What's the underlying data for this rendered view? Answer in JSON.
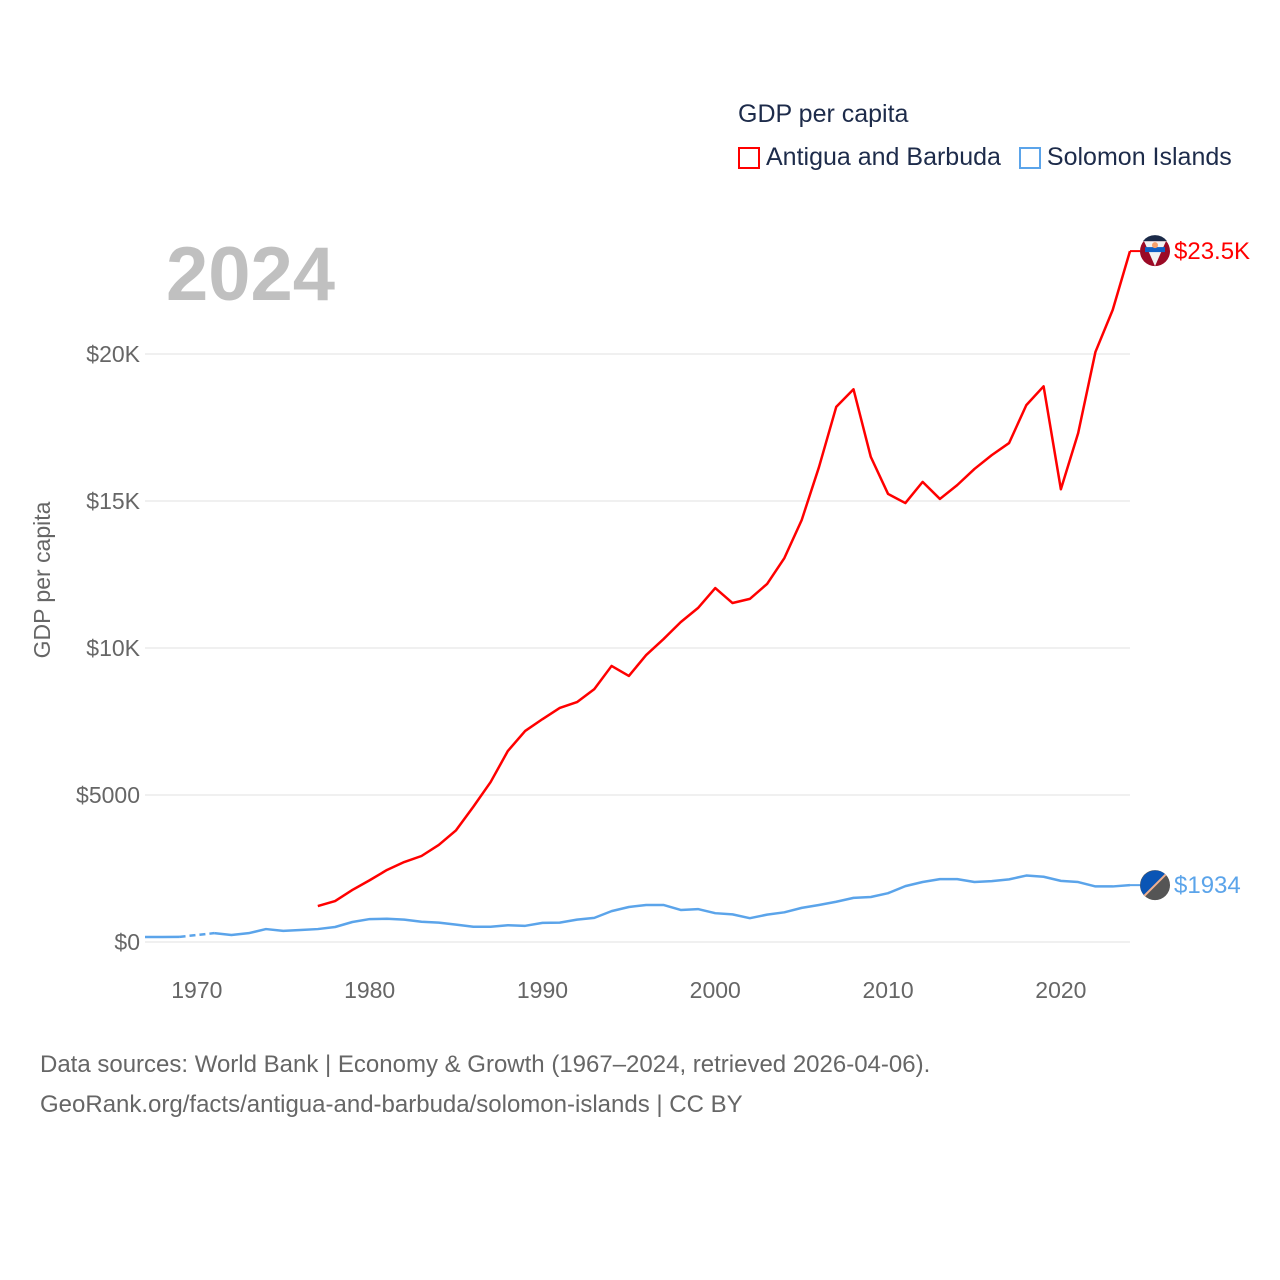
{
  "chart_data": {
    "type": "line",
    "title": "2024",
    "legend_title": "GDP per capita",
    "ylabel": "GDP per capita",
    "xlabel": "",
    "xlim": [
      1967,
      2024
    ],
    "ylim": [
      0,
      24000
    ],
    "grid": true,
    "legend_position": "top-right",
    "x_ticks": [
      1970,
      1980,
      1990,
      2000,
      2010,
      2020
    ],
    "x_tick_labels": [
      "1970",
      "1980",
      "1990",
      "2000",
      "2010",
      "2020"
    ],
    "y_ticks": [
      0,
      5000,
      10000,
      15000,
      20000
    ],
    "y_tick_labels": [
      "$0",
      "$5000",
      "$10K",
      "$15K",
      "$20K"
    ],
    "series": [
      {
        "name": "Antigua and Barbuda",
        "color": "#ff0000",
        "end_label": "$23.5K",
        "start_year": 1977,
        "values": [
          1224,
          1394,
          1770,
          2100,
          2450,
          2720,
          2925,
          3300,
          3800,
          4600,
          5440,
          6500,
          7180,
          7580,
          7960,
          8160,
          8600,
          9390,
          9050,
          9760,
          10300,
          10880,
          11360,
          12040,
          11530,
          11670,
          12180,
          13060,
          14350,
          16150,
          18200,
          18800,
          16500,
          15240,
          14930,
          15650,
          15070,
          15540,
          16090,
          16560,
          16970,
          18260,
          18900,
          15400,
          17310,
          20070,
          21500,
          23500
        ]
      },
      {
        "name": "Solomon Islands",
        "color": "#5ba4ea",
        "end_label": "$1934",
        "start_year": 1967,
        "values": [
          170,
          170,
          175,
          null,
          300,
          240,
          300,
          440,
          380,
          410,
          440,
          510,
          680,
          780,
          790,
          760,
          690,
          660,
          590,
          520,
          520,
          570,
          550,
          650,
          660,
          760,
          820,
          1050,
          1190,
          1260,
          1260,
          1090,
          1120,
          980,
          940,
          810,
          930,
          1010,
          1160,
          1260,
          1370,
          1500,
          1530,
          1660,
          1900,
          2040,
          2140,
          2140,
          2040,
          2070,
          2130,
          2260,
          2220,
          2080,
          2040,
          1890,
          1890,
          1934
        ]
      }
    ]
  },
  "footer": {
    "line1": "Data sources: World Bank | Economy & Growth (1967–2024, retrieved 2026-04-06).",
    "line2": "GeoRank.org/facts/antigua-and-barbuda/solomon-islands | CC BY"
  }
}
